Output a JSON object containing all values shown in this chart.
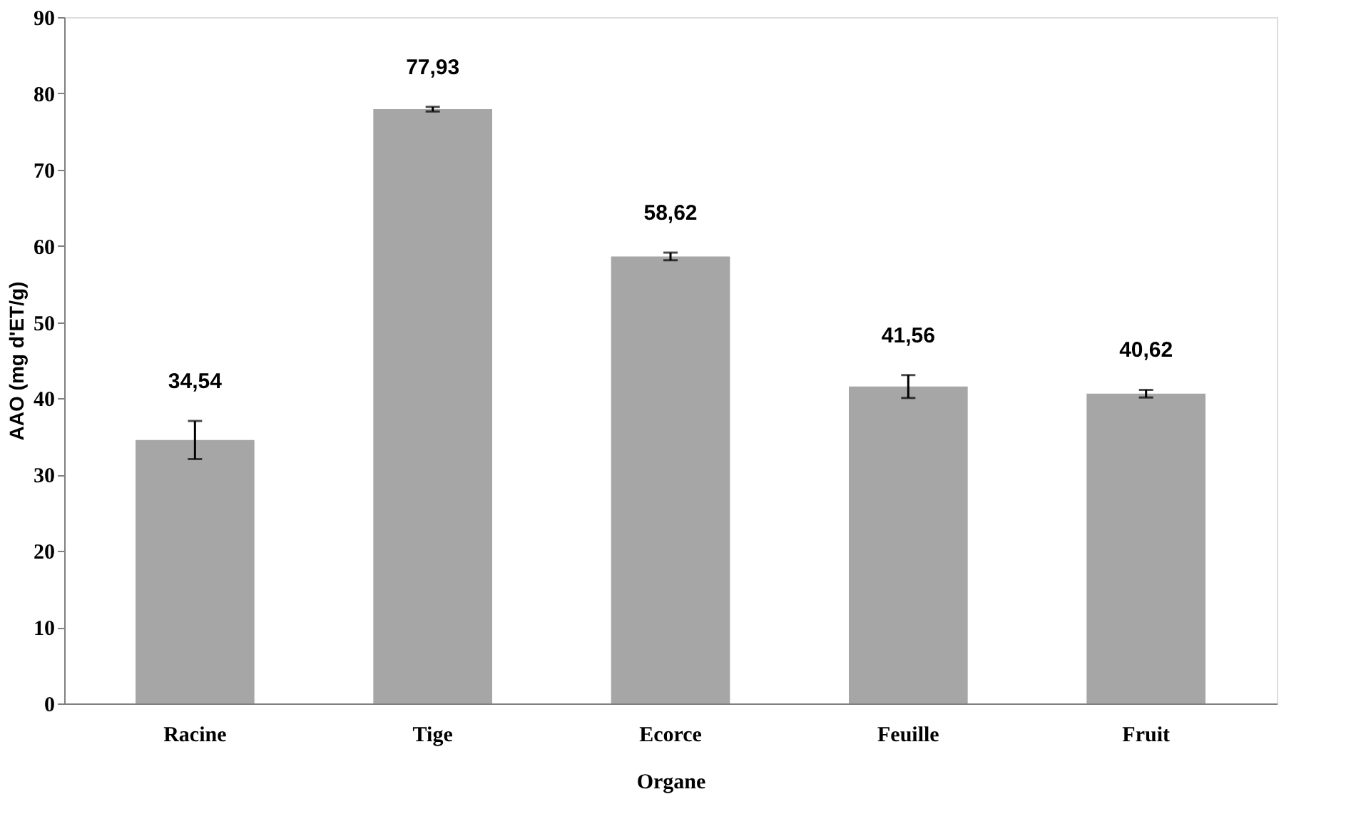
{
  "chart_data": {
    "type": "bar",
    "xlabel": "Organe",
    "ylabel": "AAO (mg d'ET/g)",
    "categories": [
      "Racine",
      "Tige",
      "Ecorce",
      "Feuille",
      "Fruit"
    ],
    "values": [
      34.54,
      77.93,
      58.62,
      41.56,
      40.62
    ],
    "value_labels": [
      "34,54",
      "77,93",
      "58,62",
      "41,56",
      "40,62"
    ],
    "errors": [
      2.5,
      0.3,
      0.5,
      1.5,
      0.5
    ],
    "color": "#a6a6a6",
    "ylim": [
      0,
      90
    ],
    "yticks": [
      0,
      10,
      20,
      30,
      40,
      50,
      60,
      70,
      80,
      90
    ],
    "grid": false
  }
}
